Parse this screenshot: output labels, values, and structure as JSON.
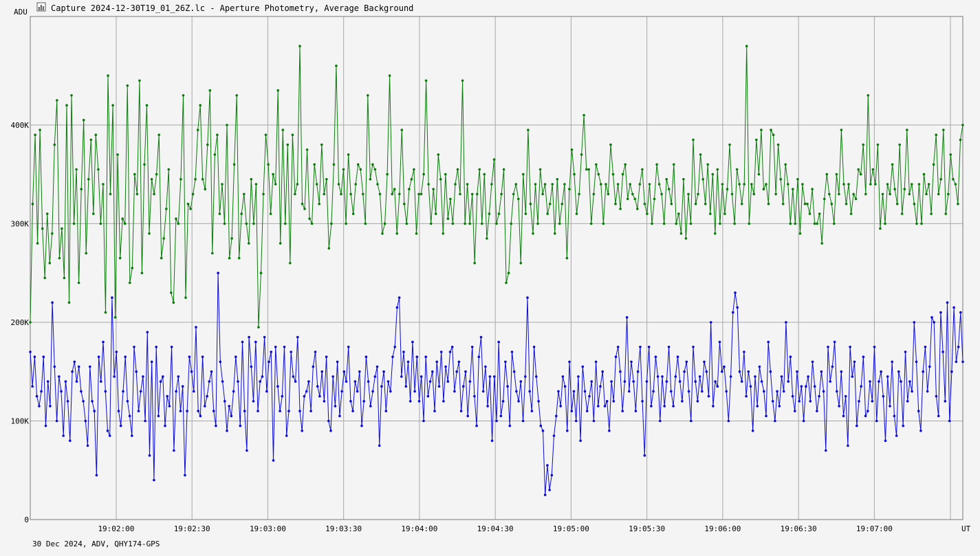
{
  "window": {
    "title": "Capture 2024-12-30T19_01_26Z.lc - Aperture Photometry, Average Background",
    "icon": "lightcurve-icon"
  },
  "footer": {
    "caption": "30 Dec 2024, ADV, QHY174-GPS"
  },
  "colors": {
    "background": "#f4f4f4",
    "grid": "#a8a8a8",
    "frame": "#000000",
    "series_green": "#0a7a0a",
    "series_blue": "#0a0ad2"
  },
  "chart_data": {
    "type": "line",
    "ylabel": "ADU",
    "xlabel": "UT",
    "ylim": [
      0,
      510000
    ],
    "xlim": [
      "19:01:26",
      "19:07:35"
    ],
    "grid": true,
    "yticks": [
      {
        "value": 0,
        "label": "0"
      },
      {
        "value": 100000,
        "label": "100K"
      },
      {
        "value": 200000,
        "label": "200K"
      },
      {
        "value": 300000,
        "label": "300K"
      },
      {
        "value": 400000,
        "label": "400K"
      }
    ],
    "xticks": [
      "19:02:00",
      "19:02:30",
      "19:03:00",
      "19:03:30",
      "19:04:00",
      "19:04:30",
      "19:05:00",
      "19:05:30",
      "19:06:00",
      "19:06:30",
      "19:07:00"
    ],
    "series": [
      {
        "color": "#0a7a0a",
        "time_range": [
          "19:01:26",
          "19:07:35"
        ],
        "values": [
          200000,
          320000,
          390000,
          280000,
          395000,
          295000,
          245000,
          310000,
          260000,
          290000,
          380000,
          425000,
          265000,
          295000,
          245000,
          420000,
          220000,
          430000,
          300000,
          355000,
          240000,
          335000,
          405000,
          270000,
          345000,
          385000,
          310000,
          390000,
          355000,
          300000,
          340000,
          210000,
          450000,
          330000,
          420000,
          205000,
          370000,
          265000,
          305000,
          300000,
          440000,
          240000,
          255000,
          350000,
          330000,
          445000,
          250000,
          360000,
          420000,
          290000,
          345000,
          330000,
          350000,
          390000,
          265000,
          285000,
          315000,
          355000,
          230000,
          220000,
          305000,
          300000,
          345000,
          430000,
          225000,
          320000,
          315000,
          330000,
          345000,
          395000,
          420000,
          345000,
          335000,
          380000,
          435000,
          270000,
          370000,
          390000,
          310000,
          340000,
          300000,
          400000,
          265000,
          285000,
          360000,
          430000,
          265000,
          310000,
          330000,
          300000,
          280000,
          345000,
          300000,
          340000,
          195000,
          250000,
          330000,
          390000,
          360000,
          310000,
          350000,
          340000,
          435000,
          280000,
          395000,
          300000,
          380000,
          260000,
          390000,
          330000,
          340000,
          480000,
          320000,
          315000,
          375000,
          305000,
          300000,
          360000,
          340000,
          320000,
          380000,
          330000,
          345000,
          275000,
          300000,
          360000,
          460000,
          340000,
          330000,
          355000,
          300000,
          370000,
          330000,
          310000,
          340000,
          360000,
          355000,
          330000,
          300000,
          430000,
          345000,
          360000,
          355000,
          340000,
          330000,
          290000,
          300000,
          350000,
          450000,
          330000,
          335000,
          290000,
          330000,
          395000,
          320000,
          300000,
          335000,
          345000,
          355000,
          290000,
          330000,
          330000,
          350000,
          445000,
          340000,
          300000,
          335000,
          310000,
          370000,
          345000,
          290000,
          350000,
          305000,
          325000,
          300000,
          340000,
          355000,
          330000,
          445000,
          300000,
          340000,
          300000,
          330000,
          260000,
          330000,
          355000,
          300000,
          350000,
          285000,
          310000,
          340000,
          365000,
          300000,
          310000,
          330000,
          355000,
          240000,
          250000,
          300000,
          330000,
          340000,
          325000,
          260000,
          350000,
          310000,
          395000,
          320000,
          290000,
          340000,
          300000,
          355000,
          330000,
          340000,
          310000,
          320000,
          340000,
          290000,
          345000,
          300000,
          320000,
          340000,
          265000,
          335000,
          375000,
          350000,
          310000,
          330000,
          370000,
          410000,
          355000,
          355000,
          300000,
          330000,
          360000,
          350000,
          340000,
          300000,
          340000,
          330000,
          380000,
          350000,
          320000,
          340000,
          315000,
          350000,
          360000,
          325000,
          340000,
          330000,
          325000,
          315000,
          340000,
          355000,
          320000,
          310000,
          340000,
          300000,
          325000,
          360000,
          340000,
          330000,
          300000,
          345000,
          335000,
          320000,
          360000,
          300000,
          310000,
          290000,
          345000,
          285000,
          330000,
          300000,
          385000,
          320000,
          330000,
          370000,
          345000,
          320000,
          360000,
          310000,
          350000,
          290000,
          355000,
          300000,
          340000,
          310000,
          335000,
          380000,
          330000,
          300000,
          355000,
          340000,
          320000,
          340000,
          480000,
          300000,
          340000,
          330000,
          385000,
          350000,
          395000,
          335000,
          340000,
          320000,
          395000,
          390000,
          330000,
          380000,
          345000,
          320000,
          360000,
          340000,
          300000,
          335000,
          300000,
          345000,
          290000,
          340000,
          320000,
          320000,
          310000,
          335000,
          300000,
          300000,
          310000,
          280000,
          325000,
          350000,
          330000,
          320000,
          300000,
          350000,
          330000,
          395000,
          340000,
          320000,
          340000,
          310000,
          330000,
          325000,
          355000,
          350000,
          380000,
          330000,
          430000,
          340000,
          355000,
          340000,
          380000,
          295000,
          330000,
          300000,
          340000,
          330000,
          360000,
          335000,
          320000,
          380000,
          310000,
          335000,
          395000,
          330000,
          340000,
          320000,
          300000,
          340000,
          300000,
          350000,
          330000,
          340000,
          310000,
          360000,
          390000,
          330000,
          345000,
          395000,
          310000,
          330000,
          370000,
          345000,
          340000,
          320000,
          385000,
          400000
        ]
      },
      {
        "color": "#0a0ad2",
        "time_range": [
          "19:01:26",
          "19:07:35"
        ],
        "values": [
          170000,
          135000,
          165000,
          125000,
          115000,
          130000,
          165000,
          95000,
          140000,
          115000,
          220000,
          155000,
          100000,
          145000,
          130000,
          85000,
          140000,
          120000,
          80000,
          150000,
          160000,
          140000,
          155000,
          130000,
          120000,
          100000,
          75000,
          155000,
          120000,
          110000,
          45000,
          165000,
          140000,
          180000,
          130000,
          90000,
          85000,
          225000,
          145000,
          170000,
          110000,
          95000,
          130000,
          165000,
          120000,
          105000,
          85000,
          175000,
          150000,
          110000,
          130000,
          145000,
          100000,
          190000,
          65000,
          160000,
          40000,
          175000,
          105000,
          140000,
          145000,
          95000,
          125000,
          115000,
          175000,
          70000,
          130000,
          145000,
          110000,
          135000,
          45000,
          110000,
          165000,
          150000,
          130000,
          195000,
          110000,
          105000,
          165000,
          115000,
          125000,
          140000,
          150000,
          110000,
          95000,
          250000,
          160000,
          140000,
          120000,
          90000,
          115000,
          105000,
          130000,
          165000,
          140000,
          95000,
          180000,
          110000,
          70000,
          185000,
          155000,
          120000,
          180000,
          110000,
          140000,
          145000,
          185000,
          130000,
          160000,
          170000,
          60000,
          175000,
          135000,
          110000,
          125000,
          175000,
          85000,
          110000,
          170000,
          145000,
          140000,
          185000,
          110000,
          90000,
          125000,
          130000,
          140000,
          110000,
          155000,
          170000,
          135000,
          125000,
          150000,
          120000,
          165000,
          100000,
          90000,
          145000,
          115000,
          160000,
          105000,
          130000,
          150000,
          140000,
          175000,
          120000,
          110000,
          140000,
          130000,
          150000,
          95000,
          120000,
          165000,
          140000,
          115000,
          130000,
          145000,
          155000,
          75000,
          135000,
          150000,
          110000,
          140000,
          130000,
          165000,
          175000,
          215000,
          225000,
          145000,
          170000,
          135000,
          160000,
          120000,
          180000,
          130000,
          165000,
          120000,
          145000,
          100000,
          165000,
          125000,
          140000,
          150000,
          110000,
          160000,
          135000,
          170000,
          120000,
          155000,
          140000,
          170000,
          175000,
          130000,
          150000,
          160000,
          110000,
          135000,
          150000,
          105000,
          140000,
          175000,
          125000,
          95000,
          165000,
          185000,
          130000,
          155000,
          115000,
          145000,
          80000,
          145000,
          100000,
          180000,
          105000,
          120000,
          160000,
          135000,
          95000,
          170000,
          150000,
          130000,
          120000,
          140000,
          100000,
          145000,
          225000,
          130000,
          110000,
          175000,
          145000,
          120000,
          95000,
          90000,
          25000,
          55000,
          30000,
          45000,
          85000,
          105000,
          130000,
          115000,
          145000,
          135000,
          90000,
          160000,
          110000,
          130000,
          100000,
          145000,
          80000,
          155000,
          130000,
          110000,
          125000,
          140000,
          100000,
          160000,
          115000,
          135000,
          150000,
          115000,
          120000,
          90000,
          140000,
          120000,
          165000,
          175000,
          150000,
          110000,
          140000,
          205000,
          130000,
          160000,
          140000,
          110000,
          150000,
          175000,
          120000,
          65000,
          140000,
          175000,
          115000,
          130000,
          165000,
          145000,
          100000,
          145000,
          115000,
          140000,
          175000,
          130000,
          115000,
          145000,
          165000,
          140000,
          120000,
          150000,
          160000,
          130000,
          100000,
          175000,
          140000,
          120000,
          145000,
          130000,
          160000,
          150000,
          125000,
          200000,
          115000,
          140000,
          135000,
          180000,
          150000,
          155000,
          130000,
          100000,
          145000,
          210000,
          230000,
          215000,
          150000,
          140000,
          170000,
          125000,
          150000,
          135000,
          90000,
          145000,
          115000,
          155000,
          140000,
          130000,
          105000,
          180000,
          150000,
          120000,
          100000,
          130000,
          115000,
          145000,
          130000,
          200000,
          140000,
          165000,
          125000,
          110000,
          150000,
          120000,
          135000,
          100000,
          135000,
          145000,
          120000,
          160000,
          135000,
          110000,
          125000,
          150000,
          130000,
          70000,
          175000,
          140000,
          155000,
          180000,
          130000,
          115000,
          150000,
          105000,
          125000,
          75000,
          175000,
          145000,
          160000,
          95000,
          120000,
          135000,
          165000,
          105000,
          110000,
          140000,
          120000,
          175000,
          100000,
          140000,
          150000,
          125000,
          80000,
          145000,
          115000,
          160000,
          105000,
          85000,
          150000,
          140000,
          95000,
          170000,
          120000,
          140000,
          130000,
          200000,
          160000,
          110000,
          90000,
          150000,
          175000,
          130000,
          155000,
          205000,
          200000,
          125000,
          105000,
          210000,
          170000,
          120000,
          220000,
          100000,
          150000,
          215000,
          160000,
          175000,
          210000,
          160000
        ]
      }
    ]
  }
}
